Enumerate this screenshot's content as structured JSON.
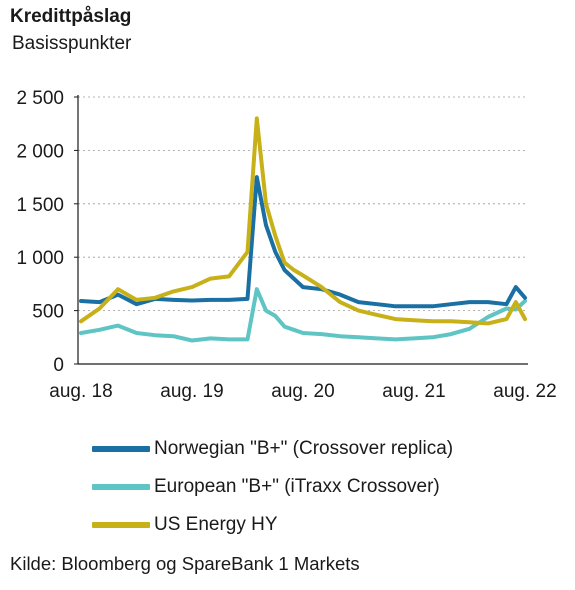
{
  "header": {
    "title": "Kredittpåslag",
    "subtitle": "Basisspunkter"
  },
  "chart_data": {
    "type": "line",
    "title": "Kredittpåslag",
    "ylabel": "Basisspunkter",
    "xlabel": "",
    "ylim": [
      0,
      2500
    ],
    "xlim": [
      "2018-08",
      "2022-08"
    ],
    "grid": "horizontal dotted",
    "legend_position": "below",
    "x_tick_labels": [
      "aug. 18",
      "aug. 19",
      "aug. 20",
      "aug. 21",
      "aug. 22"
    ],
    "y_tick_labels": [
      "0",
      "500",
      "1 000",
      "1 500",
      "2 000",
      "2 500"
    ],
    "y_ticks": [
      0,
      500,
      1000,
      1500,
      2000,
      2500
    ],
    "x": [
      "2018-08",
      "2018-10",
      "2018-12",
      "2019-02",
      "2019-04",
      "2019-06",
      "2019-08",
      "2019-10",
      "2019-12",
      "2020-02",
      "2020-03",
      "2020-04",
      "2020-05",
      "2020-06",
      "2020-07",
      "2020-08",
      "2020-10",
      "2020-12",
      "2021-02",
      "2021-04",
      "2021-06",
      "2021-08",
      "2021-10",
      "2021-12",
      "2022-02",
      "2022-04",
      "2022-06",
      "2022-07",
      "2022-08"
    ],
    "series": [
      {
        "name": "Norwegian \"B+\" (Crossover replica)",
        "color": "#1a6fa3",
        "values": [
          590,
          580,
          650,
          560,
          610,
          600,
          595,
          600,
          600,
          610,
          1750,
          1300,
          1050,
          880,
          800,
          720,
          700,
          650,
          580,
          560,
          540,
          540,
          540,
          560,
          580,
          580,
          560,
          720,
          620
        ]
      },
      {
        "name": "European \"B+\" (iTraxx Crossover)",
        "color": "#5fc4c4",
        "values": [
          290,
          320,
          360,
          290,
          270,
          260,
          220,
          240,
          230,
          230,
          700,
          500,
          450,
          350,
          320,
          290,
          280,
          260,
          250,
          240,
          230,
          240,
          250,
          280,
          330,
          440,
          520,
          510,
          590
        ]
      },
      {
        "name": "US Energy HY",
        "color": "#c8b018",
        "values": [
          400,
          520,
          700,
          600,
          620,
          680,
          720,
          800,
          820,
          1050,
          2300,
          1500,
          1200,
          950,
          880,
          830,
          720,
          580,
          500,
          460,
          420,
          410,
          400,
          400,
          390,
          380,
          420,
          580,
          420
        ]
      }
    ]
  },
  "source": "Kilde: Bloomberg og SpareBank 1 Markets"
}
